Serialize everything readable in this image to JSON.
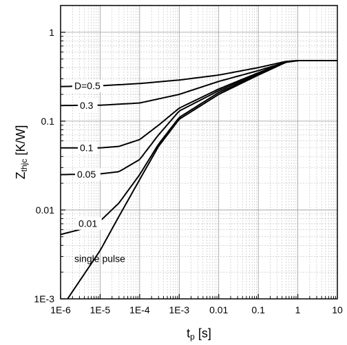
{
  "chart_data": {
    "type": "line",
    "x_scale": "log",
    "y_scale": "log",
    "xlim": [
      1e-06,
      10
    ],
    "ylim": [
      0.001,
      2
    ],
    "grid": true,
    "minor_grid": true,
    "xlabel": {
      "main": "t",
      "sub": "p",
      "unit": " [s]"
    },
    "ylabel": {
      "main": "Z",
      "sub": "thjc",
      "unit": " [K/W]"
    },
    "x_ticks": [
      {
        "value": 1e-06,
        "label": "1E-6"
      },
      {
        "value": 1e-05,
        "label": "1E-5"
      },
      {
        "value": 0.0001,
        "label": "1E-4"
      },
      {
        "value": 0.001,
        "label": "1E-3"
      },
      {
        "value": 0.01,
        "label": "0.01"
      },
      {
        "value": 0.1,
        "label": "0.1"
      },
      {
        "value": 1,
        "label": "1"
      },
      {
        "value": 10,
        "label": "10"
      }
    ],
    "y_ticks": [
      {
        "value": 0.001,
        "label": "1E-3"
      },
      {
        "value": 0.01,
        "label": "0.01"
      },
      {
        "value": 0.1,
        "label": "0.1"
      },
      {
        "value": 1,
        "label": "1"
      }
    ],
    "series": [
      {
        "label": "D=0.5",
        "x": [
          1e-06,
          1e-05,
          0.0001,
          0.001,
          0.01,
          0.1,
          0.5,
          1,
          10
        ],
        "y": [
          0.245,
          0.25,
          0.265,
          0.29,
          0.33,
          0.4,
          0.47,
          0.48,
          0.48
        ]
      },
      {
        "label": "0.3",
        "x": [
          1e-06,
          1e-05,
          0.0001,
          0.001,
          0.01,
          0.1,
          0.5,
          1,
          10
        ],
        "y": [
          0.15,
          0.151,
          0.16,
          0.2,
          0.28,
          0.37,
          0.46,
          0.48,
          0.48
        ]
      },
      {
        "label": "0.1",
        "x": [
          1e-06,
          1e-05,
          3e-05,
          0.0001,
          0.0003,
          0.001,
          0.01,
          0.1,
          0.5,
          1,
          10
        ],
        "y": [
          0.05,
          0.05,
          0.052,
          0.062,
          0.09,
          0.14,
          0.23,
          0.35,
          0.46,
          0.48,
          0.48
        ]
      },
      {
        "label": "0.05",
        "x": [
          1e-06,
          1e-05,
          3e-05,
          0.0001,
          0.0003,
          0.001,
          0.01,
          0.1,
          0.5,
          1,
          10
        ],
        "y": [
          0.025,
          0.0255,
          0.027,
          0.037,
          0.07,
          0.13,
          0.22,
          0.34,
          0.46,
          0.48,
          0.48
        ]
      },
      {
        "label": "0.01",
        "x": [
          1e-06,
          3e-06,
          1e-05,
          3e-05,
          0.0001,
          0.0003,
          0.001,
          0.01,
          0.1,
          0.5,
          1,
          10
        ],
        "y": [
          0.0053,
          0.006,
          0.0075,
          0.012,
          0.025,
          0.055,
          0.11,
          0.21,
          0.33,
          0.46,
          0.48,
          0.48
        ]
      },
      {
        "label": "single pulse",
        "x": [
          1.5e-06,
          1e-05,
          3e-05,
          0.0001,
          0.0003,
          0.001,
          0.01,
          0.1,
          0.5,
          1,
          10
        ],
        "y": [
          0.001,
          0.0035,
          0.0085,
          0.022,
          0.052,
          0.105,
          0.2,
          0.33,
          0.46,
          0.48,
          0.48
        ]
      }
    ]
  }
}
